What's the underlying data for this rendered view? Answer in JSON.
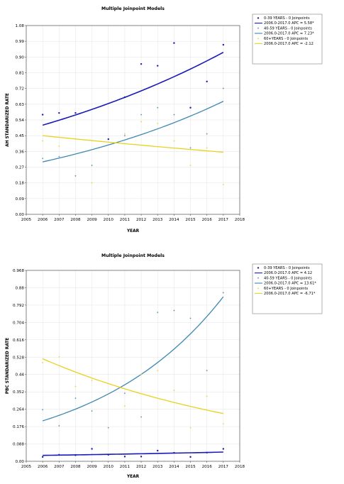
{
  "chart_data": [
    {
      "type": "scatter",
      "title": "Multiple Joinpoint Models",
      "xlabel": "YEAR",
      "ylabel": "AH STANDARIZED RATE",
      "xlim": [
        2005,
        2018
      ],
      "ylim": [
        0,
        1.08
      ],
      "xticks": [
        "2005",
        "2006",
        "2007",
        "2008",
        "2009",
        "2010",
        "2011",
        "2012",
        "2013",
        "2014",
        "2015",
        "2016",
        "2017",
        "2018"
      ],
      "yticks": [
        "0.00",
        "0.09",
        "0.18",
        "0.27",
        "0.36",
        "0.45",
        "0.54",
        "0.63",
        "0.72",
        "0.81",
        "0.90",
        "0.99",
        "1.08"
      ],
      "grid": true,
      "legend_position": "outside-right",
      "x": [
        2006,
        2007,
        2008,
        2009,
        2010,
        2011,
        2012,
        2013,
        2014,
        2015,
        2016,
        2017
      ],
      "series": [
        {
          "name": "0-39 YEARS - 0 Joinpoints",
          "color": "#1a1ab8",
          "marker": "circle",
          "values": [
            0.57,
            0.58,
            0.58,
            null,
            0.43,
            0.67,
            0.86,
            0.85,
            0.98,
            0.61,
            0.76,
            0.97
          ],
          "fit_label": "2006.0-2017.0 APC = 5.58*",
          "fit": {
            "start": 0.51,
            "apc": 5.58
          }
        },
        {
          "name": "40-59 YEARS - 0 Joinpoints",
          "color": "#3e88b4",
          "marker": "cross",
          "values": [
            0.32,
            0.33,
            0.22,
            0.28,
            null,
            0.45,
            0.57,
            0.61,
            0.57,
            0.38,
            0.46,
            0.72
          ],
          "fit_label": "2006.0-2017.0 APC = 7.23*",
          "fit": {
            "start": 0.3,
            "apc": 7.23
          }
        },
        {
          "name": "60+YEARS - 0 Joinpoints",
          "color": "#e8d21c",
          "marker": "cross",
          "values": [
            0.42,
            0.39,
            null,
            0.18,
            null,
            0.46,
            0.53,
            0.52,
            0.42,
            0.28,
            0.38,
            0.17
          ],
          "fit_label": "2006.0-2017.0 APC = -2.12",
          "fit": {
            "start": 0.45,
            "apc": -2.12
          }
        }
      ]
    },
    {
      "type": "scatter",
      "title": "Multiple Joinpoint Models",
      "xlabel": "YEAR",
      "ylabel": "PBC STANDARIZED RATE",
      "xlim": [
        2005,
        2018
      ],
      "ylim": [
        0,
        0.968
      ],
      "xticks": [
        "2005",
        "2006",
        "2007",
        "2008",
        "2009",
        "2010",
        "2011",
        "2012",
        "2013",
        "2014",
        "2015",
        "2016",
        "2017",
        "2018"
      ],
      "yticks": [
        "0.00",
        "0.088",
        "0.176",
        "0.264",
        "0.352",
        "0.44",
        "0.528",
        "0.616",
        "0.704",
        "0.792",
        "0.88",
        "0.968"
      ],
      "grid": true,
      "legend_position": "outside-right",
      "x": [
        2006,
        2007,
        2008,
        2009,
        2010,
        2011,
        2012,
        2013,
        2014,
        2015,
        2016,
        2017
      ],
      "series": [
        {
          "name": "0-39 YEARS - 0 Joinpoints",
          "color": "#1a1ab8",
          "marker": "circle",
          "values": [
            0.022,
            0.033,
            0.031,
            0.063,
            0.033,
            0.024,
            0.024,
            0.054,
            0.043,
            0.022,
            0.044,
            0.063
          ],
          "fit_label": "2006.0-2017.0 APC = 4.12",
          "fit": {
            "start": 0.03,
            "apc": 4.12
          }
        },
        {
          "name": "40-59 YEARS - 0 Joinpoints",
          "color": "#3e88b4",
          "marker": "cross",
          "values": [
            0.262,
            0.18,
            0.32,
            0.255,
            0.17,
            0.345,
            0.225,
            0.755,
            0.765,
            0.725,
            0.46,
            0.855
          ],
          "fit_label": "2006.0-2017.0 APC = 13.61*",
          "fit": {
            "start": 0.205,
            "apc": 13.61
          }
        },
        {
          "name": "60+YEARS - 0 Joinpoints",
          "color": "#e8d21c",
          "marker": "cross",
          "values": [
            0.5,
            0.53,
            0.38,
            0.41,
            null,
            0.28,
            0.44,
            0.46,
            0.36,
            0.17,
            0.33,
            0.19
          ],
          "fit_label": "2006.0-2017.0 APC = -6.71*",
          "fit": {
            "start": 0.52,
            "apc": -6.71
          }
        }
      ]
    }
  ]
}
